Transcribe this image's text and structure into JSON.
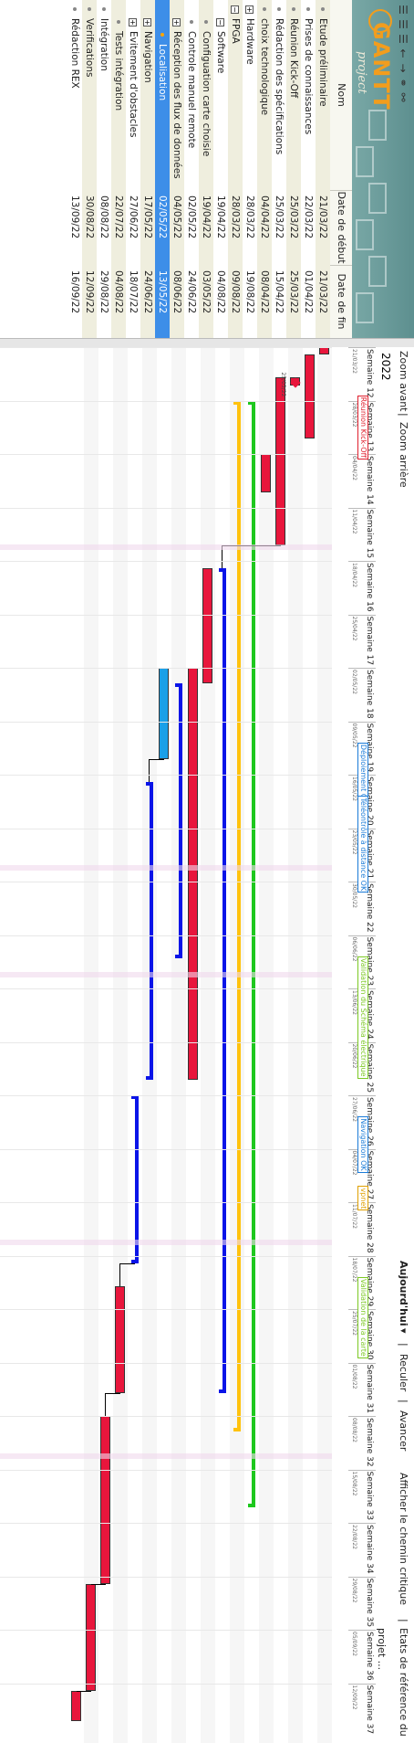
{
  "toolbar": {
    "icons": [
      "save-icon",
      "cut-icon",
      "undo-icon",
      "back-arrow-icon",
      "forward-arrow-icon",
      "link-icon",
      "unlink-icon"
    ],
    "logo_text": "GANTT",
    "logo_sub": "project"
  },
  "columns": {
    "name": "Nom",
    "start": "Date de début",
    "end": "Date de fin"
  },
  "tasks": [
    {
      "name": "Etude préliminaire",
      "start": "21/03/22",
      "end": "21/03/22",
      "level": 0,
      "expander": "",
      "selected": false
    },
    {
      "name": "Prises de connaissances",
      "start": "22/03/22",
      "end": "01/04/22",
      "level": 0,
      "expander": "",
      "selected": false
    },
    {
      "name": "Réunion Kick-Off",
      "start": "25/03/22",
      "end": "25/03/22",
      "level": 0,
      "expander": "",
      "selected": false
    },
    {
      "name": "Rédaction des spécifications",
      "start": "25/03/22",
      "end": "15/04/22",
      "level": 0,
      "expander": "",
      "selected": false
    },
    {
      "name": "choix technologique",
      "start": "04/04/22",
      "end": "08/04/22",
      "level": 0,
      "expander": "",
      "selected": false
    },
    {
      "name": "Hardware",
      "start": "28/03/22",
      "end": "19/08/22",
      "level": 0,
      "expander": "+",
      "selected": false
    },
    {
      "name": "FPGA",
      "start": "28/03/22",
      "end": "09/08/22",
      "level": 0,
      "expander": "-",
      "selected": false
    },
    {
      "name": "Software",
      "start": "19/04/22",
      "end": "04/08/22",
      "level": 1,
      "expander": "-",
      "selected": false
    },
    {
      "name": "Configuation carte choisie",
      "start": "19/04/22",
      "end": "03/05/22",
      "level": 1,
      "expander": "",
      "selected": false
    },
    {
      "name": "Controle manuel remote",
      "start": "02/05/22",
      "end": "24/06/22",
      "level": 1,
      "expander": "",
      "selected": false
    },
    {
      "name": "Réception des flux de données",
      "start": "04/05/22",
      "end": "08/06/22",
      "level": 1,
      "expander": "+",
      "selected": false
    },
    {
      "name": "Localisation",
      "start": "02/05/22",
      "end": "13/05/22",
      "level": 2,
      "expander": "",
      "selected": true
    },
    {
      "name": "Navigation",
      "start": "17/05/22",
      "end": "24/06/22",
      "level": 1,
      "expander": "+",
      "selected": false
    },
    {
      "name": "Evitement d'obstacles",
      "start": "27/06/22",
      "end": "18/07/22",
      "level": 1,
      "expander": "+",
      "selected": false
    },
    {
      "name": "Tests intégration",
      "start": "22/07/22",
      "end": "04/08/22",
      "level": 1,
      "expander": "",
      "selected": false
    },
    {
      "name": "Intégration",
      "start": "08/08/22",
      "end": "29/08/22",
      "level": 0,
      "expander": "",
      "selected": false
    },
    {
      "name": "Verifications",
      "start": "30/08/22",
      "end": "12/09/22",
      "level": 0,
      "expander": "",
      "selected": false
    },
    {
      "name": "Rédaction REX",
      "start": "13/09/22",
      "end": "16/09/22",
      "level": 0,
      "expander": "",
      "selected": false
    }
  ],
  "gantt_toolbar": {
    "zoom_in": "Zoom avant",
    "sep": "|",
    "zoom_out": "Zoom arrière",
    "today": "Aujourd'hui",
    "back": "Reculer",
    "forward": "Avancer",
    "critical_path": "Afficher le chemin critique",
    "baselines": "Etats de référence du projet ..."
  },
  "year": "2022",
  "weeks": [
    "Semaine 12",
    "Semaine 13",
    "Semaine 14",
    "Semaine 15",
    "Semaine 16",
    "Semaine 17",
    "Semaine 18",
    "Semaine 19",
    "Semaine 20",
    "Semaine 21",
    "Semaine 22",
    "Semaine 23",
    "Semaine 24",
    "Semaine 25",
    "Semaine 26",
    "Semaine 27",
    "Semaine 28",
    "Semaine 29",
    "Semaine 30",
    "Semaine 31",
    "Semaine 32",
    "Semaine 33",
    "Semaine 34",
    "Semaine 35",
    "Semaine 36",
    "Semaine 37"
  ],
  "week_dates": [
    "21/03/22",
    "28/03/22",
    "04/04/22",
    "11/04/22",
    "18/04/22",
    "25/04/22",
    "02/05/22",
    "09/05/22",
    "16/05/22",
    "23/05/22",
    "30/05/22",
    "06/06/22",
    "13/06/22",
    "20/06/22",
    "27/06/22",
    "04/07/22",
    "11/07/22",
    "18/07/22",
    "25/07/22",
    "01/08/22",
    "08/08/22",
    "15/08/22",
    "22/08/22",
    "29/08/22",
    "05/09/22",
    "12/09/22"
  ],
  "milestone_date": "25/03/22",
  "milestone_tags": [
    {
      "text": "Réunion Kick-Off",
      "color": "#e0202e"
    },
    {
      "text": "Déploiement OK",
      "color": "#1a7bd8"
    },
    {
      "text": "Téléontrôle à distance OK",
      "color": "#1a7bd8"
    },
    {
      "text": "Validation du Schéma électrique",
      "color": "#7cc924"
    },
    {
      "text": "Navigation OK",
      "color": "#1a7bd8"
    },
    {
      "text": "vpnet",
      "color": "#e0a000"
    },
    {
      "text": "Validation de la carte",
      "color": "#7cc924"
    }
  ],
  "colors": {
    "task_red": "#e8163c",
    "task_blue": "#1aa0e8",
    "summary_blue": "#0a14e8",
    "summary_yellow": "#ffc20e",
    "summary_green": "#1ec81e",
    "selection": "#3d8ee8",
    "toolbar_teal": "#6a9c9b"
  }
}
